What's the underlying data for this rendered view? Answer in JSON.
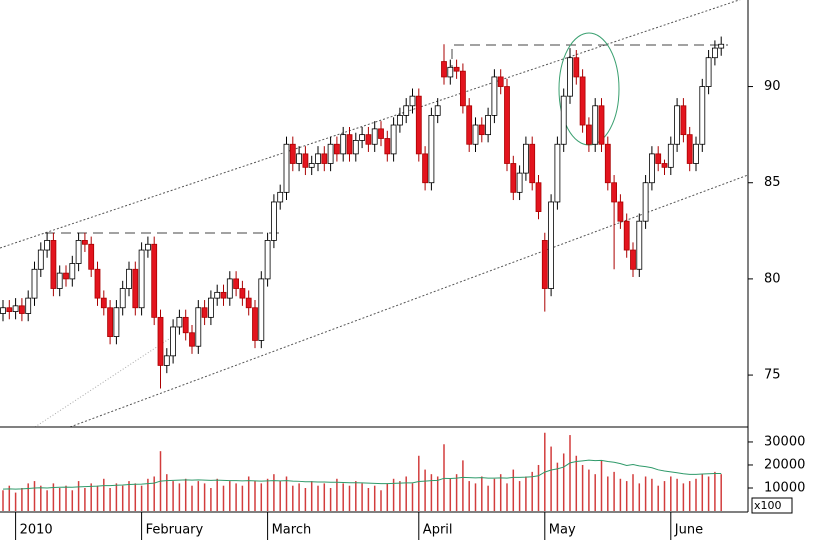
{
  "chart_data": {
    "type": "candlestick",
    "categories": [
      null,
      null,
      "2010",
      null,
      null,
      null,
      null,
      null,
      null,
      null,
      null,
      null,
      null,
      null,
      null,
      null,
      null,
      null,
      null,
      null,
      null,
      null,
      "February",
      null,
      null,
      null,
      null,
      null,
      null,
      null,
      null,
      null,
      null,
      null,
      null,
      null,
      null,
      null,
      null,
      null,
      null,
      null,
      "March",
      null,
      null,
      null,
      null,
      null,
      null,
      null,
      null,
      null,
      null,
      null,
      null,
      null,
      null,
      null,
      null,
      null,
      null,
      null,
      null,
      null,
      null,
      null,
      "April",
      null,
      null,
      null,
      null,
      null,
      null,
      null,
      null,
      null,
      null,
      null,
      null,
      null,
      null,
      null,
      null,
      null,
      null,
      null,
      "May",
      null,
      null,
      null,
      null,
      null,
      null,
      null,
      null,
      null,
      null,
      null,
      null,
      null,
      null,
      null,
      null,
      null,
      null,
      null,
      "June",
      null,
      null,
      null,
      null,
      null,
      null,
      null,
      null
    ],
    "open": [
      78.2,
      78.5,
      78.3,
      78.6,
      78.2,
      79.0,
      80.5,
      81.5,
      82.0,
      79.5,
      80.3,
      80.0,
      80.8,
      82.0,
      81.8,
      80.5,
      79.0,
      78.5,
      77.0,
      78.5,
      79.5,
      80.5,
      78.5,
      81.5,
      81.8,
      78.0,
      75.5,
      76.0,
      77.5,
      78.0,
      77.2,
      76.5,
      78.5,
      78.0,
      79.0,
      79.3,
      79.0,
      80.0,
      79.5,
      79.0,
      78.5,
      76.8,
      80.0,
      82.0,
      84.0,
      84.5,
      87.0,
      86.0,
      86.5,
      85.8,
      86.0,
      86.5,
      86.0,
      87.0,
      86.5,
      87.5,
      86.5,
      87.2,
      87.5,
      87.0,
      87.8,
      87.3,
      86.5,
      88.0,
      88.5,
      89.0,
      89.5,
      86.5,
      85.0,
      88.5,
      91.3,
      90.5,
      91.0,
      90.8,
      89.0,
      87.0,
      88.0,
      87.5,
      88.5,
      90.5,
      90.0,
      86.0,
      84.5,
      85.5,
      87.0,
      85.0,
      82.0,
      79.5,
      84.0,
      87.0,
      89.5,
      91.5,
      90.5,
      88.0,
      87.0,
      89.0,
      87.0,
      85.0,
      84.0,
      83.0,
      81.5,
      80.5,
      83.0,
      85.0,
      86.5,
      86.0,
      85.8,
      87.0,
      89.0,
      87.5,
      86.0,
      87.0,
      90.0,
      91.5,
      92.0
    ],
    "high": [
      78.9,
      78.9,
      79.0,
      79.0,
      79.4,
      80.9,
      81.9,
      82.4,
      82.4,
      80.7,
      80.7,
      81.2,
      82.4,
      82.4,
      82.2,
      80.9,
      79.4,
      78.9,
      78.9,
      79.9,
      80.9,
      80.9,
      81.9,
      82.2,
      82.2,
      78.4,
      76.4,
      77.9,
      78.4,
      78.4,
      77.6,
      78.9,
      78.9,
      79.4,
      79.7,
      79.7,
      80.4,
      80.4,
      79.9,
      79.4,
      78.9,
      80.4,
      82.4,
      84.4,
      84.9,
      87.4,
      87.4,
      86.9,
      86.9,
      86.4,
      86.9,
      86.9,
      87.4,
      87.4,
      87.9,
      87.9,
      87.6,
      87.9,
      87.9,
      88.2,
      88.2,
      87.7,
      88.4,
      88.9,
      89.4,
      89.9,
      89.9,
      86.9,
      88.9,
      89.4,
      92.2,
      91.4,
      91.4,
      91.2,
      89.4,
      88.4,
      88.4,
      88.9,
      90.9,
      90.9,
      90.4,
      86.4,
      85.9,
      87.4,
      87.4,
      85.4,
      82.4,
      84.4,
      87.4,
      89.9,
      92.0,
      91.9,
      90.9,
      88.4,
      89.4,
      89.4,
      87.4,
      85.4,
      84.4,
      83.4,
      81.9,
      83.4,
      85.4,
      86.9,
      86.9,
      86.2,
      87.4,
      89.4,
      89.4,
      87.9,
      87.4,
      90.4,
      91.9,
      92.4,
      92.6
    ],
    "low": [
      77.8,
      77.9,
      77.9,
      77.8,
      77.8,
      78.6,
      80.1,
      81.1,
      79.1,
      79.1,
      79.6,
      79.6,
      80.4,
      81.4,
      80.1,
      78.6,
      78.1,
      76.6,
      76.6,
      78.1,
      79.1,
      78.1,
      78.1,
      81.1,
      77.6,
      74.3,
      75.1,
      75.6,
      77.1,
      76.8,
      76.1,
      76.1,
      77.6,
      77.6,
      78.6,
      78.6,
      78.6,
      79.1,
      78.6,
      78.1,
      76.4,
      76.4,
      79.6,
      81.6,
      83.6,
      84.1,
      85.6,
      85.6,
      85.4,
      85.4,
      85.6,
      85.6,
      85.6,
      86.1,
      86.1,
      86.1,
      86.1,
      86.8,
      86.6,
      86.6,
      86.9,
      86.1,
      86.1,
      87.6,
      88.1,
      88.6,
      86.1,
      84.6,
      84.6,
      88.1,
      90.1,
      90.1,
      90.4,
      88.6,
      86.6,
      86.6,
      87.1,
      87.1,
      88.1,
      89.6,
      85.6,
      84.1,
      84.1,
      85.1,
      84.6,
      83.1,
      78.3,
      79.1,
      83.6,
      86.6,
      89.1,
      90.1,
      87.6,
      86.6,
      86.6,
      86.6,
      84.6,
      80.5,
      82.6,
      81.1,
      80.1,
      80.1,
      82.6,
      84.6,
      85.6,
      85.4,
      85.4,
      86.6,
      87.1,
      85.6,
      85.6,
      86.6,
      89.6,
      91.1,
      91.6
    ],
    "close": [
      78.5,
      78.3,
      78.6,
      78.2,
      79.0,
      80.5,
      81.5,
      82.0,
      79.5,
      80.3,
      80.0,
      80.8,
      82.0,
      81.8,
      80.5,
      79.0,
      78.5,
      77.0,
      78.5,
      79.5,
      80.5,
      78.5,
      81.5,
      81.8,
      78.0,
      75.5,
      76.0,
      77.5,
      78.0,
      77.2,
      76.5,
      78.5,
      78.0,
      79.0,
      79.3,
      79.0,
      80.0,
      79.5,
      79.0,
      78.5,
      76.8,
      80.0,
      82.0,
      84.0,
      84.5,
      87.0,
      86.0,
      86.5,
      85.8,
      86.0,
      86.5,
      86.0,
      87.0,
      86.5,
      87.5,
      86.5,
      87.2,
      87.5,
      87.0,
      87.8,
      87.3,
      86.5,
      88.0,
      88.5,
      89.0,
      89.5,
      86.5,
      85.0,
      88.5,
      89.0,
      90.5,
      91.0,
      90.8,
      89.0,
      87.0,
      88.0,
      87.5,
      88.5,
      90.5,
      90.0,
      86.0,
      84.5,
      85.5,
      87.0,
      85.0,
      83.5,
      79.5,
      84.0,
      87.0,
      89.5,
      91.5,
      90.5,
      88.0,
      87.0,
      89.0,
      87.0,
      85.0,
      84.0,
      83.0,
      81.5,
      80.5,
      83.0,
      85.0,
      86.5,
      86.0,
      85.8,
      87.0,
      89.0,
      87.5,
      86.0,
      87.0,
      90.0,
      91.5,
      92.0,
      92.2
    ],
    "up_color": "#ffffff",
    "down_color": "#e3141e",
    "ylim": [
      72.3,
      94.5
    ],
    "yticks": [
      75,
      80,
      85,
      90
    ],
    "volume": {
      "values": [
        9000,
        11000,
        8000,
        10000,
        12000,
        13000,
        11000,
        9000,
        12000,
        10000,
        11000,
        9000,
        13000,
        10000,
        12000,
        11000,
        14000,
        10000,
        12000,
        11000,
        13000,
        12000,
        11000,
        14000,
        15000,
        26000,
        16000,
        13000,
        12000,
        14000,
        11000,
        13000,
        12000,
        10000,
        14000,
        11000,
        13000,
        12000,
        11000,
        15000,
        13000,
        12000,
        14000,
        16000,
        13000,
        15000,
        11000,
        12000,
        10000,
        13000,
        11000,
        12000,
        10000,
        14000,
        12000,
        11000,
        13000,
        12000,
        10000,
        11000,
        9000,
        12000,
        14000,
        13000,
        15000,
        12000,
        24000,
        18000,
        16000,
        15000,
        29000,
        14000,
        16000,
        22000,
        13000,
        12000,
        15000,
        11000,
        14000,
        16000,
        12000,
        18000,
        13000,
        15000,
        17000,
        20000,
        34000,
        28000,
        21000,
        25000,
        33000,
        24000,
        20000,
        18000,
        16000,
        22000,
        15000,
        17000,
        14000,
        13000,
        16000,
        12000,
        15000,
        14000,
        11000,
        13000,
        15000,
        14000,
        12000,
        13000,
        14000,
        16000,
        15000,
        17000,
        16000
      ],
      "color": "#d23c3c",
      "average": [
        9500,
        9600,
        9500,
        9600,
        9800,
        10000,
        10100,
        10000,
        10200,
        10300,
        10400,
        10300,
        10500,
        10600,
        10700,
        10800,
        11000,
        11000,
        11200,
        11300,
        11500,
        11600,
        11700,
        11900,
        12100,
        13000,
        13200,
        13300,
        13400,
        13500,
        13400,
        13500,
        13400,
        13300,
        13400,
        13300,
        13200,
        13200,
        13100,
        13200,
        13100,
        13000,
        13100,
        13200,
        13100,
        13200,
        13000,
        12900,
        12700,
        12700,
        12600,
        12600,
        12500,
        12500,
        12400,
        12300,
        12300,
        12200,
        12100,
        12000,
        11900,
        11900,
        12000,
        12100,
        12200,
        12200,
        12800,
        13000,
        13200,
        13300,
        14200,
        14100,
        14300,
        14600,
        14500,
        14400,
        14500,
        14300,
        14300,
        14400,
        14300,
        14600,
        14600,
        14700,
        14900,
        15300,
        16900,
        17800,
        18300,
        19100,
        20900,
        21500,
        21800,
        22100,
        21900,
        22000,
        21500,
        21200,
        20600,
        19800,
        20200,
        19600,
        19300,
        18800,
        17900,
        17400,
        17000,
        16600,
        16200,
        15900,
        15900,
        16100,
        16200,
        16300,
        16300
      ],
      "average_color": "#2f9a6a",
      "ylim": [
        0,
        36500
      ],
      "yticks": [
        10000,
        20000,
        30000
      ],
      "unit_label": "x100"
    }
  }
}
